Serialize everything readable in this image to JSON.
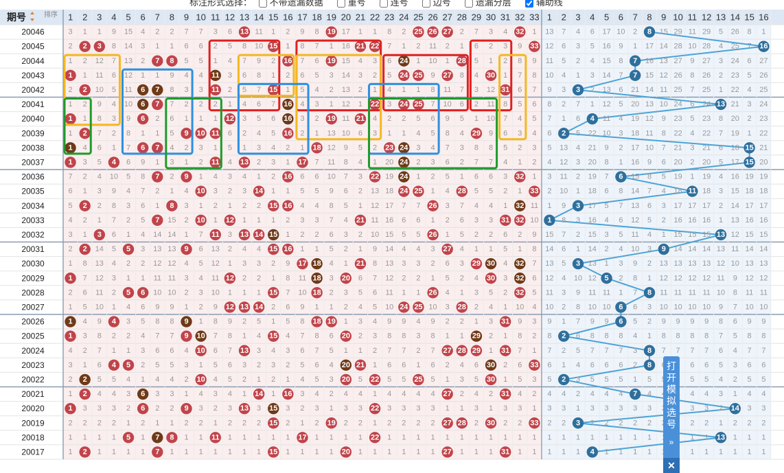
{
  "toolbar": {
    "title": "标注形式选择：",
    "options": [
      {
        "label": "不带遗漏数据",
        "checked": false
      },
      {
        "label": "重号",
        "checked": false
      },
      {
        "label": "连号",
        "checked": false
      },
      {
        "label": "边号",
        "checked": false
      },
      {
        "label": "遗漏分层",
        "checked": false
      },
      {
        "label": "辅助线",
        "checked": true
      }
    ]
  },
  "header": {
    "period_label": "期号",
    "sort_label": "排序",
    "red_columns": [
      "1",
      "2",
      "3",
      "4",
      "5",
      "6",
      "7",
      "8",
      "9",
      "10",
      "11",
      "12",
      "13",
      "14",
      "15",
      "16",
      "17",
      "18",
      "19",
      "20",
      "21",
      "22",
      "23",
      "24",
      "25",
      "26",
      "27",
      "28",
      "29",
      "30",
      "31",
      "32",
      "33"
    ],
    "blue_columns": [
      "1",
      "2",
      "3",
      "4",
      "5",
      "6",
      "7",
      "8",
      "9",
      "10",
      "11",
      "12",
      "13",
      "14",
      "15",
      "16"
    ]
  },
  "colors": {
    "red_ball": "#c0444a",
    "brown_ball": "#6e3a18",
    "blue_ball": "#2f6f9c",
    "aux_line": "#4aa3d6",
    "box_red": "#e02020",
    "box_blue": "#2f8fe0",
    "box_orange": "#f5b820",
    "box_green": "#1f9a2a",
    "red_zone_bg": "#fbeeee",
    "blue_zone_bg": "#eef4fb"
  },
  "rows": [
    {
      "period": "20046",
      "red": [
        13,
        19,
        25,
        26,
        27,
        32
      ],
      "blue": 8
    },
    {
      "period": "20045",
      "red": [
        2,
        3,
        15,
        21,
        22,
        33
      ],
      "blue": 16
    },
    {
      "period": "20044",
      "red": [
        7,
        8,
        16,
        19,
        24,
        28
      ],
      "blue": 7
    },
    {
      "period": "20043",
      "red": [
        1,
        11,
        24,
        25,
        27,
        30
      ],
      "blue": 7
    },
    {
      "period": "20042",
      "red": [
        2,
        6,
        7,
        11,
        15,
        31
      ],
      "blue": 3
    },
    {
      "period": "20041",
      "red": [
        6,
        7,
        16,
        22,
        24,
        25
      ],
      "blue": 13
    },
    {
      "period": "20040",
      "red": [
        1,
        6,
        12,
        16,
        19,
        21
      ],
      "blue": 4
    },
    {
      "period": "20039",
      "red": [
        2,
        9,
        10,
        11,
        16,
        29
      ],
      "blue": 2
    },
    {
      "period": "20038",
      "red": [
        1,
        6,
        7,
        18,
        23,
        24
      ],
      "blue": 15
    },
    {
      "period": "20037",
      "red": [
        1,
        4,
        11,
        13,
        17,
        24
      ],
      "blue": 15
    },
    {
      "period": "20036",
      "red": [
        7,
        9,
        16,
        22,
        24,
        32
      ],
      "blue": 6
    },
    {
      "period": "20035",
      "red": [
        10,
        14,
        24,
        25,
        28,
        33
      ],
      "blue": 11
    },
    {
      "period": "20034",
      "red": [
        2,
        8,
        15,
        16,
        26,
        32
      ],
      "blue": 3
    },
    {
      "period": "20033",
      "red": [
        7,
        10,
        12,
        21,
        31,
        32
      ],
      "blue": 1
    },
    {
      "period": "20032",
      "red": [
        3,
        11,
        13,
        14,
        15,
        26
      ],
      "blue": 13
    },
    {
      "period": "20031",
      "red": [
        2,
        5,
        9,
        15,
        16,
        27
      ],
      "blue": 9
    },
    {
      "period": "20030",
      "red": [
        17,
        18,
        21,
        29,
        30,
        32
      ],
      "blue": 3
    },
    {
      "period": "20029",
      "red": [
        1,
        12,
        18,
        20,
        30,
        32
      ],
      "blue": 5
    },
    {
      "period": "20028",
      "red": [
        5,
        6,
        15,
        18,
        26,
        32
      ],
      "blue": 8
    },
    {
      "period": "20027",
      "red": [
        12,
        13,
        14,
        24,
        25,
        28
      ],
      "blue": 6
    },
    {
      "period": "20026",
      "red": [
        1,
        4,
        9,
        18,
        19,
        31
      ],
      "blue": 6
    },
    {
      "period": "20025",
      "red": [
        1,
        9,
        10,
        15,
        20,
        29
      ],
      "blue": 2
    },
    {
      "period": "20024",
      "red": [
        10,
        13,
        27,
        28,
        29,
        31
      ],
      "blue": 8
    },
    {
      "period": "20023",
      "red": [
        4,
        5,
        20,
        21,
        30,
        33
      ],
      "blue": 8
    },
    {
      "period": "20022",
      "red": [
        2,
        10,
        20,
        22,
        25,
        30
      ],
      "blue": 2
    },
    {
      "period": "20021",
      "red": [
        2,
        6,
        14,
        16,
        27,
        31
      ],
      "blue": 7
    },
    {
      "period": "20020",
      "red": [
        1,
        6,
        9,
        13,
        15,
        22
      ],
      "blue": 14
    },
    {
      "period": "20019",
      "red": [
        15,
        19,
        27,
        28,
        30,
        33
      ],
      "blue": 3
    },
    {
      "period": "20018",
      "red": [
        5,
        7,
        8,
        11,
        17,
        22
      ],
      "blue": 13
    },
    {
      "period": "20017",
      "red": [
        2,
        7,
        15,
        20,
        27,
        31
      ],
      "blue": 4
    }
  ],
  "boxes": [
    {
      "color": "red",
      "col_from": 11,
      "col_to": 15,
      "row_from": 1,
      "row_to": 5
    },
    {
      "color": "red",
      "col_from": 17,
      "col_to": 22,
      "row_from": 1,
      "row_to": 5
    },
    {
      "color": "red",
      "col_from": 23,
      "col_to": 28,
      "row_from": 2,
      "row_to": 5
    },
    {
      "color": "red",
      "col_from": 29,
      "col_to": 31,
      "row_from": 1,
      "row_to": 5
    },
    {
      "color": "orange",
      "col_from": 1,
      "col_to": 4,
      "row_from": 2,
      "row_to": 6
    },
    {
      "color": "orange",
      "col_from": 13,
      "col_to": 16,
      "row_from": 2,
      "row_to": 4
    },
    {
      "color": "orange",
      "col_from": 17,
      "col_to": 22,
      "row_from": 2,
      "row_to": 7
    },
    {
      "color": "orange",
      "col_from": 31,
      "col_to": 32,
      "row_from": 2,
      "row_to": 7
    },
    {
      "color": "blue",
      "col_from": 5,
      "col_to": 9,
      "row_from": 3,
      "row_to": 8
    },
    {
      "color": "blue",
      "col_from": 13,
      "col_to": 17,
      "row_from": 4,
      "row_to": 8
    },
    {
      "color": "blue",
      "col_from": 22,
      "col_to": 26,
      "row_from": 4,
      "row_to": 8
    },
    {
      "color": "green",
      "col_from": 1,
      "col_to": 2,
      "row_from": 5,
      "row_to": 8
    },
    {
      "color": "green",
      "col_from": 8,
      "col_to": 11,
      "row_from": 5,
      "row_to": 9
    },
    {
      "color": "green",
      "col_from": 22,
      "col_to": 30,
      "row_from": 5,
      "row_to": 9
    }
  ],
  "sim_panel": {
    "label": "打开模拟选号",
    "chevron": "»",
    "close": "✕"
  }
}
